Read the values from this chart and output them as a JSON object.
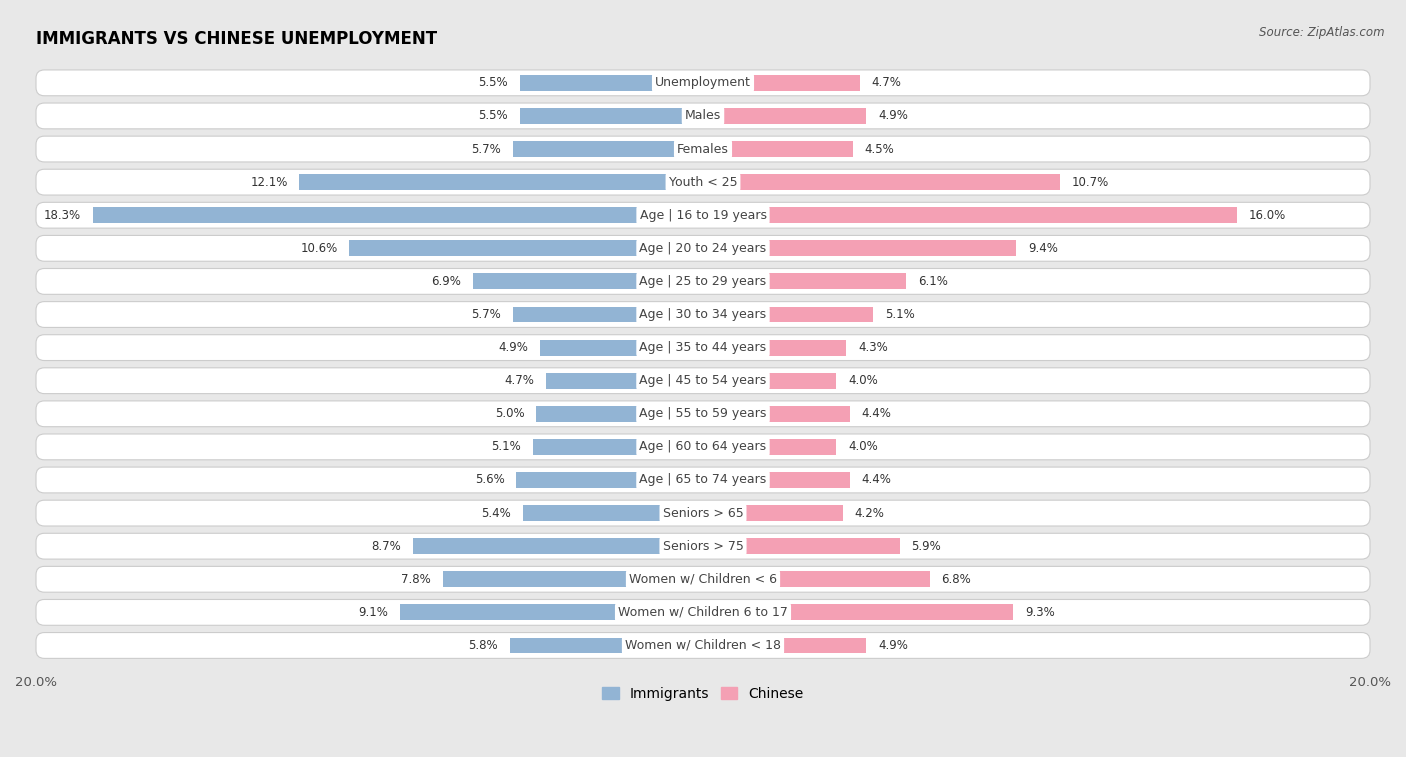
{
  "title": "IMMIGRANTS VS CHINESE UNEMPLOYMENT",
  "source": "Source: ZipAtlas.com",
  "categories": [
    "Unemployment",
    "Males",
    "Females",
    "Youth < 25",
    "Age | 16 to 19 years",
    "Age | 20 to 24 years",
    "Age | 25 to 29 years",
    "Age | 30 to 34 years",
    "Age | 35 to 44 years",
    "Age | 45 to 54 years",
    "Age | 55 to 59 years",
    "Age | 60 to 64 years",
    "Age | 65 to 74 years",
    "Seniors > 65",
    "Seniors > 75",
    "Women w/ Children < 6",
    "Women w/ Children 6 to 17",
    "Women w/ Children < 18"
  ],
  "immigrants": [
    5.5,
    5.5,
    5.7,
    12.1,
    18.3,
    10.6,
    6.9,
    5.7,
    4.9,
    4.7,
    5.0,
    5.1,
    5.6,
    5.4,
    8.7,
    7.8,
    9.1,
    5.8
  ],
  "chinese": [
    4.7,
    4.9,
    4.5,
    10.7,
    16.0,
    9.4,
    6.1,
    5.1,
    4.3,
    4.0,
    4.4,
    4.0,
    4.4,
    4.2,
    5.9,
    6.8,
    9.3,
    4.9
  ],
  "immigrants_color": "#92b4d4",
  "chinese_color": "#f4a0b4",
  "axis_max": 20.0,
  "bg_color": "#e8e8e8",
  "row_bg_color": "#ffffff",
  "row_border_color": "#cccccc",
  "label_fontsize": 9,
  "title_fontsize": 12,
  "value_fontsize": 8.5,
  "source_fontsize": 8.5
}
